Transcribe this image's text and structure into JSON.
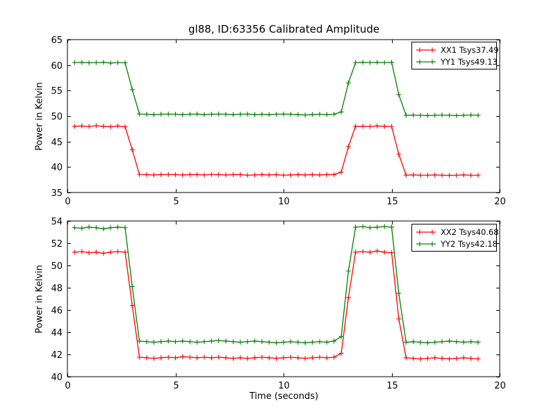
{
  "figure": {
    "title": "gl88, ID:63356 Calibrated Amplitude",
    "background": "#ffffff",
    "axes_color": "#000000"
  },
  "chart_data": [
    {
      "type": "line",
      "subplot": "top",
      "ylabel": "Power in Kelvin",
      "xlabel": "",
      "xlim": [
        0,
        20
      ],
      "ylim": [
        35,
        65
      ],
      "xticks": [
        0,
        5,
        10,
        15,
        20
      ],
      "yticks": [
        35,
        40,
        45,
        50,
        55,
        60,
        65
      ],
      "grid": false,
      "legend_position": "upper right",
      "x": [
        0.33,
        0.67,
        1,
        1.33,
        1.67,
        2,
        2.33,
        2.67,
        3,
        3.33,
        3.67,
        4,
        4.33,
        4.67,
        5,
        5.33,
        5.67,
        6,
        6.33,
        6.67,
        7,
        7.33,
        7.67,
        8,
        8.33,
        8.67,
        9,
        9.33,
        9.67,
        10,
        10.33,
        10.67,
        11,
        11.33,
        11.67,
        12,
        12.33,
        12.67,
        13,
        13.33,
        13.67,
        14,
        14.33,
        14.67,
        15,
        15.33,
        15.67,
        16,
        16.33,
        16.67,
        17,
        17.33,
        17.67,
        18,
        18.33,
        18.67,
        19
      ],
      "series": [
        {
          "name": "XX1 Tsys37.49",
          "color": "#ff0000",
          "marker": "+",
          "values": [
            48.0,
            48.05,
            47.95,
            48.1,
            48.0,
            47.9,
            48.05,
            47.9,
            43.4,
            38.55,
            38.5,
            38.45,
            38.5,
            38.55,
            38.5,
            38.45,
            38.5,
            38.5,
            38.45,
            38.55,
            38.5,
            38.45,
            38.5,
            38.5,
            38.4,
            38.45,
            38.5,
            38.45,
            38.5,
            38.4,
            38.45,
            38.5,
            38.45,
            38.5,
            38.45,
            38.5,
            38.5,
            39.0,
            44.0,
            48.0,
            48.0,
            47.95,
            48.05,
            48.0,
            47.95,
            42.5,
            38.4,
            38.45,
            38.4,
            38.4,
            38.45,
            38.4,
            38.35,
            38.4,
            38.45,
            38.4,
            38.4
          ]
        },
        {
          "name": "YY1 Tsys49.13",
          "color": "#008000",
          "marker": "+",
          "values": [
            60.5,
            60.55,
            60.45,
            60.5,
            60.55,
            60.4,
            60.5,
            60.45,
            55.2,
            50.4,
            50.35,
            50.3,
            50.35,
            50.4,
            50.35,
            50.3,
            50.35,
            50.4,
            50.3,
            50.35,
            50.4,
            50.35,
            50.3,
            50.35,
            50.4,
            50.3,
            50.35,
            50.3,
            50.35,
            50.4,
            50.35,
            50.3,
            50.2,
            50.3,
            50.35,
            50.3,
            50.35,
            50.8,
            56.5,
            60.5,
            60.55,
            60.5,
            60.55,
            60.5,
            60.55,
            54.2,
            50.15,
            50.2,
            50.15,
            50.1,
            50.15,
            50.2,
            50.15,
            50.1,
            50.15,
            50.2,
            50.15
          ]
        }
      ]
    },
    {
      "type": "line",
      "subplot": "bottom",
      "ylabel": "Power in Kelvin",
      "xlabel": "Time (seconds)",
      "xlim": [
        0,
        20
      ],
      "ylim": [
        40,
        54
      ],
      "xticks": [
        0,
        5,
        10,
        15,
        20
      ],
      "yticks": [
        40,
        42,
        44,
        46,
        48,
        50,
        52,
        54
      ],
      "grid": false,
      "legend_position": "upper right",
      "x": [
        0.33,
        0.67,
        1,
        1.33,
        1.67,
        2,
        2.33,
        2.67,
        3,
        3.33,
        3.67,
        4,
        4.33,
        4.67,
        5,
        5.33,
        5.67,
        6,
        6.33,
        6.67,
        7,
        7.33,
        7.67,
        8,
        8.33,
        8.67,
        9,
        9.33,
        9.67,
        10,
        10.33,
        10.67,
        11,
        11.33,
        11.67,
        12,
        12.33,
        12.67,
        13,
        13.33,
        13.67,
        14,
        14.33,
        14.67,
        15,
        15.33,
        15.67,
        16,
        16.33,
        16.67,
        17,
        17.33,
        17.67,
        18,
        18.33,
        18.67,
        19
      ],
      "series": [
        {
          "name": "XX2 Tsys40.68",
          "color": "#ff0000",
          "marker": "+",
          "values": [
            51.2,
            51.25,
            51.15,
            51.2,
            51.1,
            51.2,
            51.25,
            51.2,
            46.4,
            41.75,
            41.7,
            41.65,
            41.7,
            41.75,
            41.7,
            41.8,
            41.75,
            41.7,
            41.75,
            41.7,
            41.75,
            41.7,
            41.65,
            41.7,
            41.65,
            41.7,
            41.75,
            41.7,
            41.65,
            41.7,
            41.75,
            41.7,
            41.65,
            41.7,
            41.75,
            41.7,
            41.75,
            42.1,
            47.1,
            51.2,
            51.25,
            51.2,
            51.3,
            51.2,
            51.15,
            45.2,
            41.7,
            41.65,
            41.6,
            41.65,
            41.7,
            41.65,
            41.6,
            41.65,
            41.7,
            41.65,
            41.6
          ]
        },
        {
          "name": "YY2 Tsys42.18",
          "color": "#008000",
          "marker": "+",
          "values": [
            53.4,
            53.35,
            53.45,
            53.4,
            53.3,
            53.4,
            53.45,
            53.4,
            48.1,
            43.2,
            43.15,
            43.1,
            43.15,
            43.2,
            43.15,
            43.2,
            43.15,
            43.1,
            43.15,
            43.2,
            43.25,
            43.2,
            43.15,
            43.1,
            43.15,
            43.2,
            43.15,
            43.1,
            43.05,
            43.1,
            43.15,
            43.1,
            43.05,
            43.1,
            43.15,
            43.1,
            43.2,
            43.6,
            49.5,
            53.45,
            53.5,
            53.4,
            53.45,
            53.5,
            53.45,
            47.5,
            43.1,
            43.15,
            43.1,
            43.05,
            43.1,
            43.15,
            43.2,
            43.15,
            43.1,
            43.15,
            43.1
          ]
        }
      ]
    }
  ]
}
